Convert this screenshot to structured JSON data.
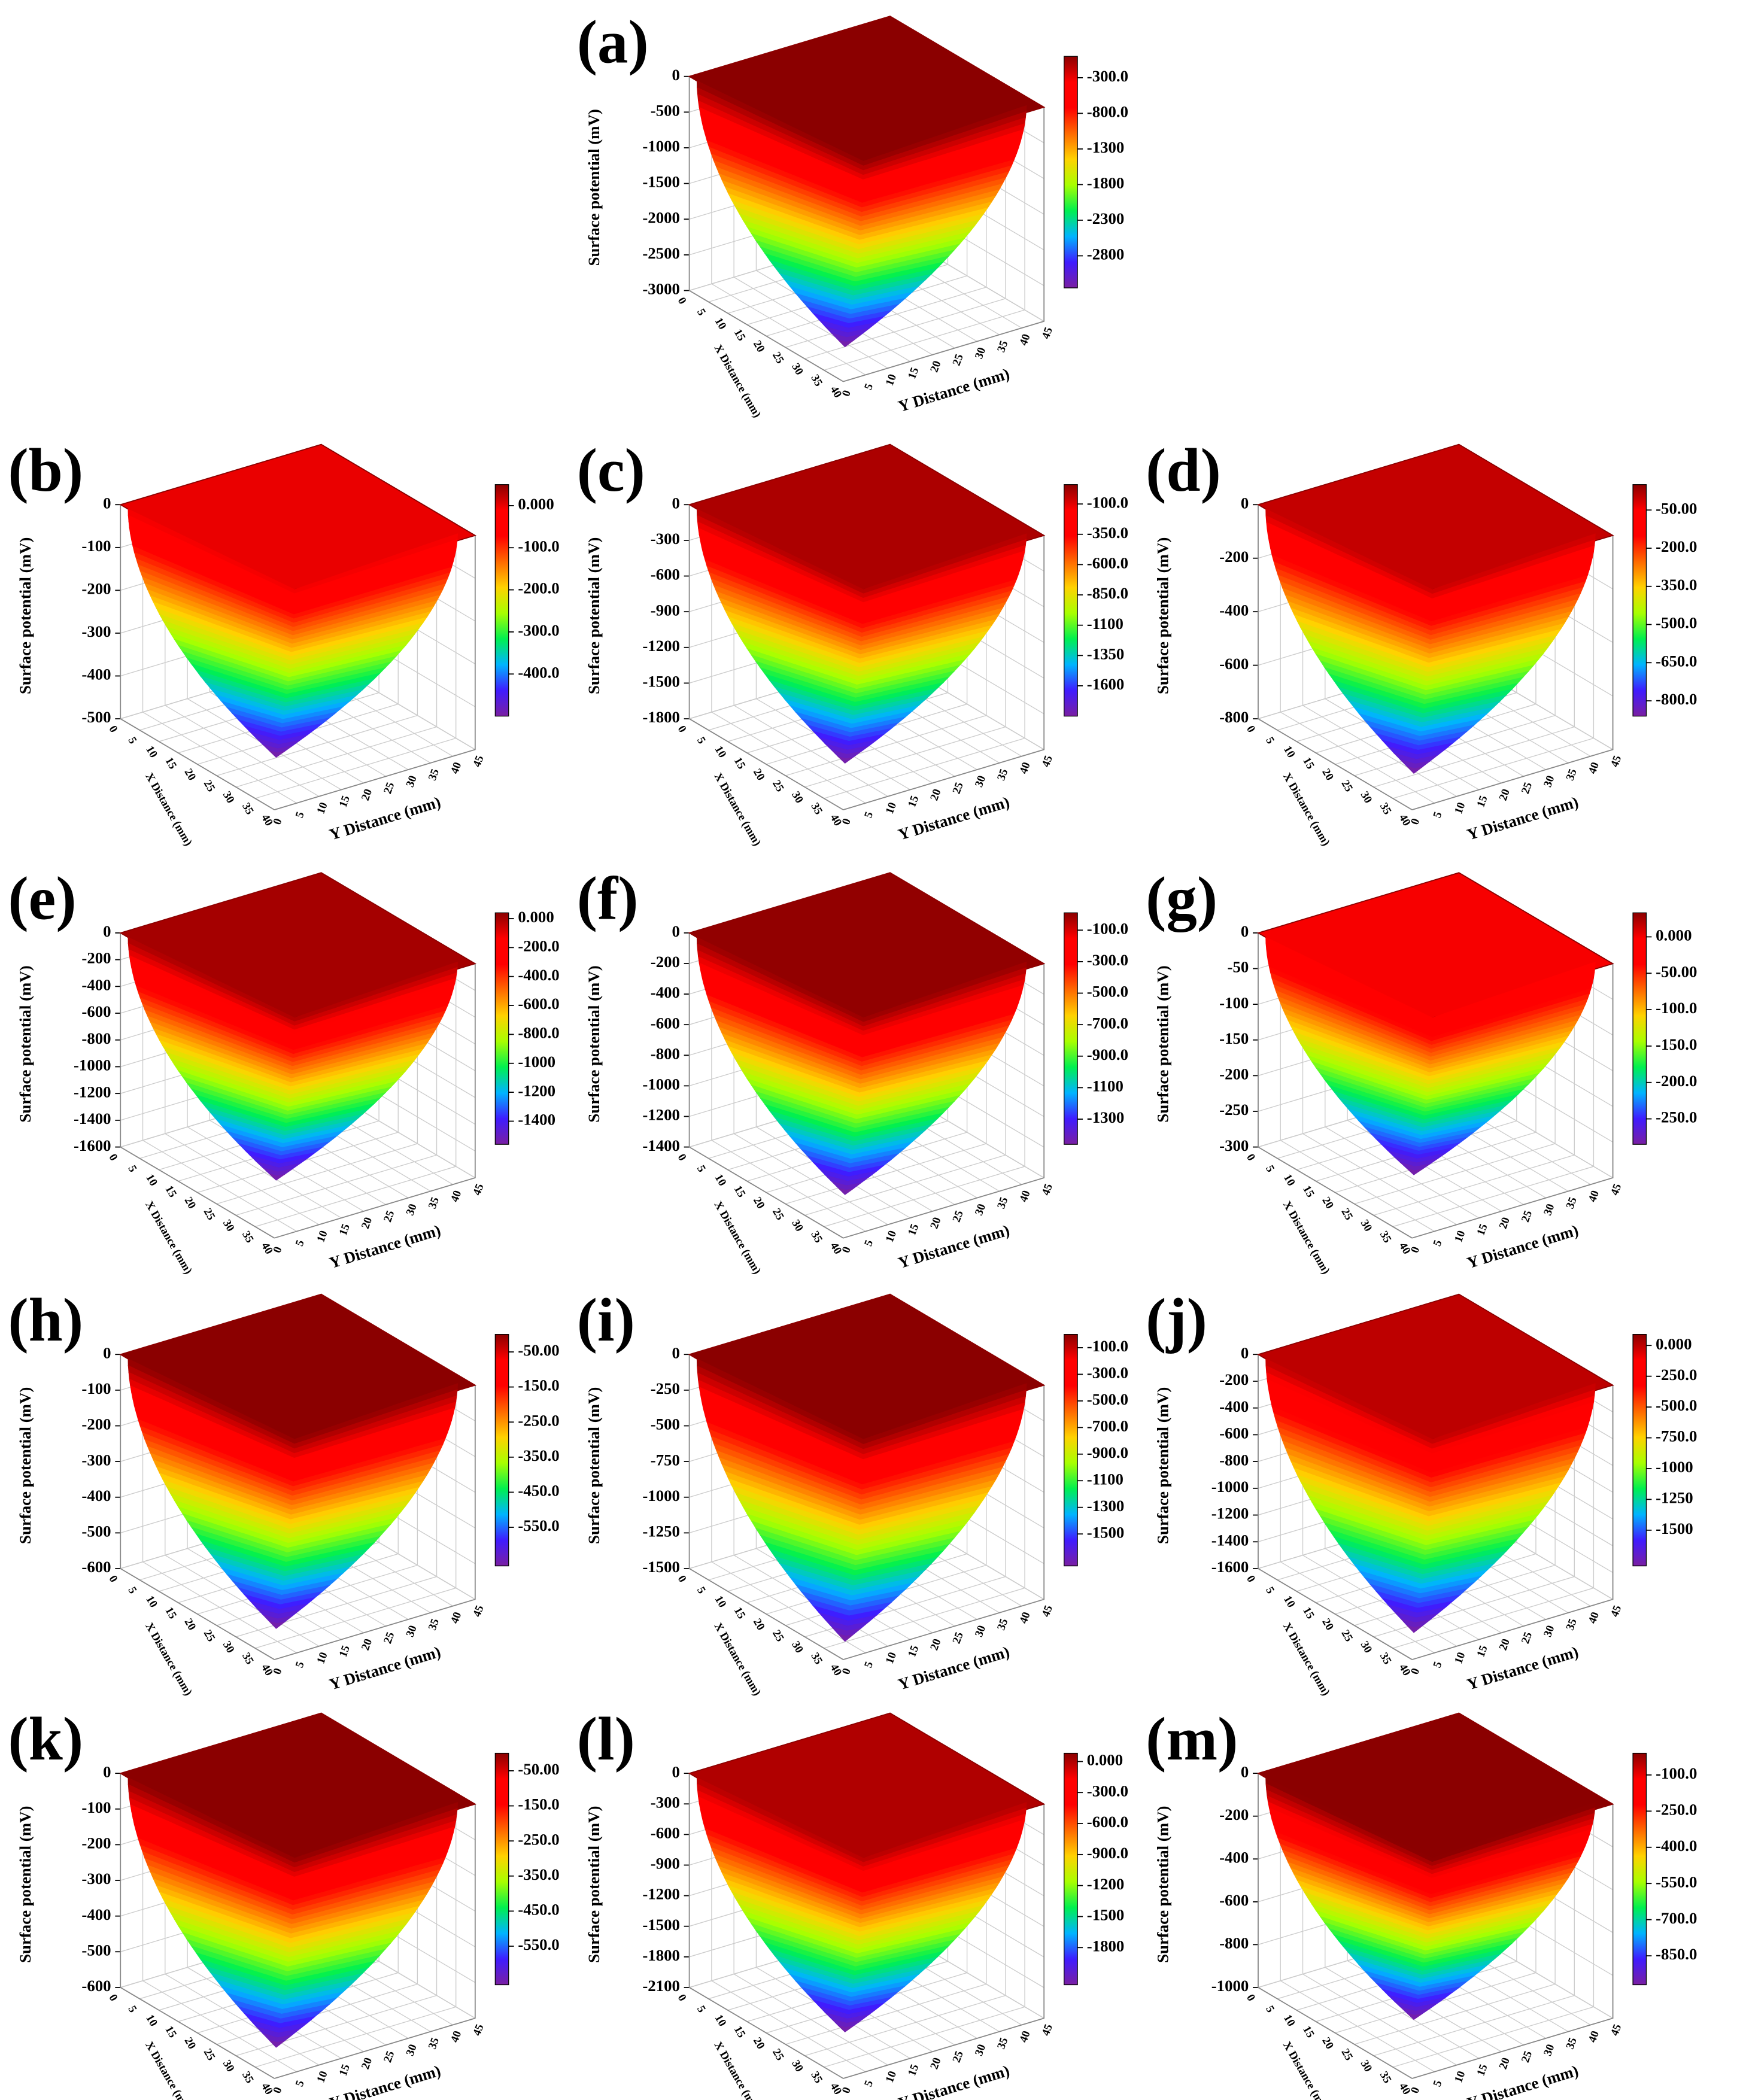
{
  "chart_data": [
    {
      "type": "surface3d",
      "label": "(a)",
      "zlabel": "Surface potential (mV)",
      "xlabel": "X Distance (mm)",
      "ylabel": "Y Distance (mm)",
      "xlim": [
        0,
        40
      ],
      "xticks": [
        0,
        5,
        10,
        15,
        20,
        25,
        30,
        35,
        40
      ],
      "ylim": [
        0,
        45
      ],
      "yticks": [
        0,
        5,
        10,
        15,
        20,
        25,
        30,
        35,
        40,
        45
      ],
      "zlim": [
        -3000,
        0
      ],
      "zticks": [
        0,
        -500,
        -1000,
        -1500,
        -2000,
        -2500,
        -3000
      ],
      "clim": [
        -3250,
        0
      ],
      "cticks": [
        {
          "value": -300,
          "label": "-300.0"
        },
        {
          "value": -800,
          "label": "-800.0"
        },
        -1300,
        -1800,
        -2300,
        -2800
      ],
      "colormap": [
        "#7a1fa2",
        "#3f1cff",
        "#00b4ff",
        "#00f050",
        "#a8ff00",
        "#ffd200",
        "#ff6a00",
        "#ff0000",
        "#ff0000",
        "#8b0000"
      ],
      "grid": true
    },
    {
      "type": "surface3d",
      "label": "(b)",
      "zlabel": "Surface potential (mV)",
      "xlabel": "X Distance (mm)",
      "ylabel": "Y Distance (mm)",
      "xlim": [
        0,
        40
      ],
      "xticks": [
        0,
        5,
        10,
        15,
        20,
        25,
        30,
        35,
        40
      ],
      "ylim": [
        0,
        45
      ],
      "yticks": [
        0,
        5,
        10,
        15,
        20,
        25,
        30,
        35,
        40,
        45
      ],
      "zlim": [
        -500,
        0
      ],
      "zticks": [
        0,
        -100,
        -200,
        -300,
        -400,
        -500
      ],
      "clim": [
        -500,
        50
      ],
      "cticks": [
        {
          "value": 0,
          "label": "0.000"
        },
        {
          "value": -100,
          "label": "-100.0"
        },
        {
          "value": -200,
          "label": "-200.0"
        },
        {
          "value": -300,
          "label": "-300.0"
        },
        {
          "value": -400,
          "label": "-400.0"
        }
      ],
      "colormap": [
        "#7a1fa2",
        "#3f1cff",
        "#00b4ff",
        "#00f050",
        "#a8ff00",
        "#ffd200",
        "#ff6a00",
        "#ff0000",
        "#ff0000",
        "#8b0000"
      ],
      "grid": true
    },
    {
      "type": "surface3d",
      "label": "(c)",
      "zlabel": "Surface potential (mV)",
      "xlabel": "X Distance (mm)",
      "ylabel": "Y Distance (mm)",
      "xlim": [
        0,
        40
      ],
      "xticks": [
        0,
        5,
        10,
        15,
        20,
        25,
        30,
        35,
        40
      ],
      "ylim": [
        0,
        45
      ],
      "yticks": [
        0,
        5,
        10,
        15,
        20,
        25,
        30,
        35,
        40,
        45
      ],
      "zlim": [
        -1800,
        0
      ],
      "zticks": [
        0,
        -300,
        -600,
        -900,
        -1200,
        -1500,
        -1800
      ],
      "clim": [
        -1850,
        60
      ],
      "cticks": [
        {
          "value": -100,
          "label": "-100.0"
        },
        {
          "value": -350,
          "label": "-350.0"
        },
        {
          "value": -600,
          "label": "-600.0"
        },
        {
          "value": -850,
          "label": "-850.0"
        },
        -1100,
        -1350,
        -1600
      ],
      "colormap": [
        "#7a1fa2",
        "#3f1cff",
        "#00b4ff",
        "#00f050",
        "#a8ff00",
        "#ffd200",
        "#ff6a00",
        "#ff0000",
        "#ff0000",
        "#8b0000"
      ],
      "grid": true
    },
    {
      "type": "surface3d",
      "label": "(d)",
      "zlabel": "Surface potential (mV)",
      "xlabel": "X Distance (mm)",
      "ylabel": "Y Distance (mm)",
      "xlim": [
        0,
        40
      ],
      "xticks": [
        0,
        5,
        10,
        15,
        20,
        25,
        30,
        35,
        40
      ],
      "ylim": [
        0,
        45
      ],
      "yticks": [
        0,
        5,
        10,
        15,
        20,
        25,
        30,
        35,
        40,
        45
      ],
      "zlim": [
        -800,
        0
      ],
      "zticks": [
        0,
        -200,
        -400,
        -600,
        -800
      ],
      "clim": [
        -860,
        50
      ],
      "cticks": [
        {
          "value": -50,
          "label": "-50.00"
        },
        {
          "value": -200,
          "label": "-200.0"
        },
        {
          "value": -350,
          "label": "-350.0"
        },
        {
          "value": -500,
          "label": "-500.0"
        },
        {
          "value": -650,
          "label": "-650.0"
        },
        {
          "value": -800,
          "label": "-800.0"
        }
      ],
      "colormap": [
        "#7a1fa2",
        "#3f1cff",
        "#00b4ff",
        "#00f050",
        "#a8ff00",
        "#ffd200",
        "#ff6a00",
        "#ff0000",
        "#ff0000",
        "#8b0000"
      ],
      "grid": true
    },
    {
      "type": "surface3d",
      "label": "(e)",
      "zlabel": "Surface potential (mV)",
      "xlabel": "X Distance (mm)",
      "ylabel": "Y Distance (mm)",
      "xlim": [
        0,
        40
      ],
      "xticks": [
        0,
        5,
        10,
        15,
        20,
        25,
        30,
        35,
        40
      ],
      "ylim": [
        0,
        45
      ],
      "yticks": [
        0,
        5,
        10,
        15,
        20,
        25,
        30,
        35,
        40,
        45
      ],
      "zlim": [
        -1600,
        0
      ],
      "zticks": [
        0,
        -200,
        -400,
        -600,
        -800,
        -1000,
        -1200,
        -1400,
        -1600
      ],
      "clim": [
        -1560,
        40
      ],
      "cticks": [
        {
          "value": 0,
          "label": "0.000"
        },
        {
          "value": -200,
          "label": "-200.0"
        },
        {
          "value": -400,
          "label": "-400.0"
        },
        {
          "value": -600,
          "label": "-600.0"
        },
        {
          "value": -800,
          "label": "-800.0"
        },
        -1000,
        -1200,
        -1400
      ],
      "colormap": [
        "#7a1fa2",
        "#3f1cff",
        "#00b4ff",
        "#00f050",
        "#a8ff00",
        "#ffd200",
        "#ff6a00",
        "#ff0000",
        "#ff0000",
        "#8b0000"
      ],
      "grid": true
    },
    {
      "type": "surface3d",
      "label": "(f)",
      "zlabel": "Surface potential (mV)",
      "xlabel": "X Distance (mm)",
      "ylabel": "Y Distance (mm)",
      "xlim": [
        0,
        40
      ],
      "xticks": [
        0,
        5,
        10,
        15,
        20,
        25,
        30,
        35,
        40
      ],
      "ylim": [
        0,
        45
      ],
      "yticks": [
        0,
        5,
        10,
        15,
        20,
        25,
        30,
        35,
        40,
        45
      ],
      "zlim": [
        -1400,
        0
      ],
      "zticks": [
        0,
        -200,
        -400,
        -600,
        -800,
        -1000,
        -1200,
        -1400
      ],
      "clim": [
        -1460,
        10
      ],
      "cticks": [
        {
          "value": -100,
          "label": "-100.0"
        },
        {
          "value": -300,
          "label": "-300.0"
        },
        {
          "value": -500,
          "label": "-500.0"
        },
        {
          "value": -700,
          "label": "-700.0"
        },
        {
          "value": -900,
          "label": "-900.0"
        },
        -1100,
        -1300
      ],
      "colormap": [
        "#7a1fa2",
        "#3f1cff",
        "#00b4ff",
        "#00f050",
        "#a8ff00",
        "#ffd200",
        "#ff6a00",
        "#ff0000",
        "#ff0000",
        "#8b0000"
      ],
      "grid": true
    },
    {
      "type": "surface3d",
      "label": "(g)",
      "zlabel": "Surface potential (mV)",
      "xlabel": "X Distance (mm)",
      "ylabel": "Y Distance (mm)",
      "xlim": [
        0,
        40
      ],
      "xticks": [
        0,
        5,
        10,
        15,
        20,
        25,
        30,
        35,
        40
      ],
      "ylim": [
        0,
        45
      ],
      "yticks": [
        0,
        5,
        10,
        15,
        20,
        25,
        30,
        35,
        40,
        45
      ],
      "zlim": [
        -300,
        0
      ],
      "zticks": [
        0,
        -50,
        -100,
        -150,
        -200,
        -250,
        -300
      ],
      "clim": [
        -285,
        33
      ],
      "cticks": [
        {
          "value": 0,
          "label": "0.000"
        },
        {
          "value": -50,
          "label": "-50.00"
        },
        {
          "value": -100,
          "label": "-100.0"
        },
        {
          "value": -150,
          "label": "-150.0"
        },
        {
          "value": -200,
          "label": "-200.0"
        },
        {
          "value": -250,
          "label": "-250.0"
        }
      ],
      "colormap": [
        "#7a1fa2",
        "#3f1cff",
        "#00b4ff",
        "#00f050",
        "#a8ff00",
        "#ffd200",
        "#ff6a00",
        "#ff0000",
        "#ff0000",
        "#8b0000"
      ],
      "grid": true
    },
    {
      "type": "surface3d",
      "label": "(h)",
      "zlabel": "Surface potential (mV)",
      "xlabel": "X Distance (mm)",
      "ylabel": "Y Distance (mm)",
      "xlim": [
        0,
        40
      ],
      "xticks": [
        0,
        5,
        10,
        15,
        20,
        25,
        30,
        35,
        40
      ],
      "ylim": [
        0,
        45
      ],
      "yticks": [
        0,
        5,
        10,
        15,
        20,
        25,
        30,
        35,
        40,
        45
      ],
      "zlim": [
        -600,
        0
      ],
      "zticks": [
        0,
        -100,
        -200,
        -300,
        -400,
        -500,
        -600
      ],
      "clim": [
        -660,
        0
      ],
      "cticks": [
        {
          "value": -50,
          "label": "-50.00"
        },
        {
          "value": -150,
          "label": "-150.0"
        },
        {
          "value": -250,
          "label": "-250.0"
        },
        {
          "value": -350,
          "label": "-350.0"
        },
        {
          "value": -450,
          "label": "-450.0"
        },
        {
          "value": -550,
          "label": "-550.0"
        }
      ],
      "colormap": [
        "#7a1fa2",
        "#3f1cff",
        "#00b4ff",
        "#00f050",
        "#a8ff00",
        "#ffd200",
        "#ff6a00",
        "#ff0000",
        "#ff0000",
        "#8b0000"
      ],
      "grid": true
    },
    {
      "type": "surface3d",
      "label": "(i)",
      "zlabel": "Surface potential (mV)",
      "xlabel": "X Distance (mm)",
      "ylabel": "Y Distance (mm)",
      "xlim": [
        0,
        40
      ],
      "xticks": [
        0,
        5,
        10,
        15,
        20,
        25,
        30,
        35,
        40
      ],
      "ylim": [
        0,
        45
      ],
      "yticks": [
        0,
        5,
        10,
        15,
        20,
        25,
        30,
        35,
        40,
        45
      ],
      "zlim": [
        -1500,
        0
      ],
      "zticks": [
        0,
        -250,
        -500,
        -750,
        -1000,
        -1250,
        -1500
      ],
      "clim": [
        -1740,
        0
      ],
      "cticks": [
        {
          "value": -100,
          "label": "-100.0"
        },
        {
          "value": -300,
          "label": "-300.0"
        },
        {
          "value": -500,
          "label": "-500.0"
        },
        {
          "value": -700,
          "label": "-700.0"
        },
        {
          "value": -900,
          "label": "-900.0"
        },
        -1100,
        -1300,
        -1500
      ],
      "colormap": [
        "#7a1fa2",
        "#3f1cff",
        "#00b4ff",
        "#00f050",
        "#a8ff00",
        "#ffd200",
        "#ff6a00",
        "#ff0000",
        "#ff0000",
        "#8b0000"
      ],
      "grid": true
    },
    {
      "type": "surface3d",
      "label": "(j)",
      "zlabel": "Surface potential (mV)",
      "xlabel": "X Distance (mm)",
      "ylabel": "Y Distance (mm)",
      "xlim": [
        0,
        40
      ],
      "xticks": [
        0,
        5,
        10,
        15,
        20,
        25,
        30,
        35,
        40
      ],
      "ylim": [
        0,
        45
      ],
      "yticks": [
        0,
        5,
        10,
        15,
        20,
        25,
        30,
        35,
        40,
        45
      ],
      "zlim": [
        -1600,
        0
      ],
      "zticks": [
        0,
        -200,
        -400,
        -600,
        -800,
        -1000,
        -1200,
        -1400,
        -1600
      ],
      "clim": [
        -1790,
        90
      ],
      "cticks": [
        {
          "value": 0,
          "label": "0.000"
        },
        {
          "value": -250,
          "label": "-250.0"
        },
        {
          "value": -500,
          "label": "-500.0"
        },
        {
          "value": -750,
          "label": "-750.0"
        },
        -1000,
        -1250,
        -1500
      ],
      "colormap": [
        "#7a1fa2",
        "#3f1cff",
        "#00b4ff",
        "#00f050",
        "#a8ff00",
        "#ffd200",
        "#ff6a00",
        "#ff0000",
        "#ff0000",
        "#8b0000"
      ],
      "grid": true
    },
    {
      "type": "surface3d",
      "label": "(k)",
      "zlabel": "Surface potential (mV)",
      "xlabel": "X Distance (mm)",
      "ylabel": "Y Distance (mm)",
      "xlim": [
        0,
        40
      ],
      "xticks": [
        0,
        5,
        10,
        15,
        20,
        25,
        30,
        35,
        40
      ],
      "ylim": [
        0,
        45
      ],
      "yticks": [
        0,
        5,
        10,
        15,
        20,
        25,
        30,
        35,
        40,
        45
      ],
      "zlim": [
        -600,
        0
      ],
      "zticks": [
        0,
        -100,
        -200,
        -300,
        -400,
        -500,
        -600
      ],
      "clim": [
        -660,
        0
      ],
      "cticks": [
        {
          "value": -50,
          "label": "-50.00"
        },
        {
          "value": -150,
          "label": "-150.0"
        },
        {
          "value": -250,
          "label": "-250.0"
        },
        {
          "value": -350,
          "label": "-350.0"
        },
        {
          "value": -450,
          "label": "-450.0"
        },
        {
          "value": -550,
          "label": "-550.0"
        }
      ],
      "colormap": [
        "#7a1fa2",
        "#3f1cff",
        "#00b4ff",
        "#00f050",
        "#a8ff00",
        "#ffd200",
        "#ff6a00",
        "#ff0000",
        "#ff0000",
        "#8b0000"
      ],
      "grid": true
    },
    {
      "type": "surface3d",
      "label": "(l)",
      "zlabel": "Surface potential (mV)",
      "xlabel": "X Distance (mm)",
      "ylabel": "Y Distance (mm)",
      "xlim": [
        0,
        40
      ],
      "xticks": [
        0,
        5,
        10,
        15,
        20,
        25,
        30,
        35,
        40
      ],
      "ylim": [
        0,
        45
      ],
      "yticks": [
        0,
        5,
        10,
        15,
        20,
        25,
        30,
        35,
        40,
        45
      ],
      "zlim": [
        -2100,
        0
      ],
      "zticks": [
        0,
        -300,
        -600,
        -900,
        -1200,
        -1500,
        -1800,
        -2100
      ],
      "clim": [
        -2160,
        80
      ],
      "cticks": [
        {
          "value": 0,
          "label": "0.000"
        },
        {
          "value": -300,
          "label": "-300.0"
        },
        {
          "value": -600,
          "label": "-600.0"
        },
        {
          "value": -900,
          "label": "-900.0"
        },
        -1200,
        -1500,
        -1800
      ],
      "colormap": [
        "#7a1fa2",
        "#3f1cff",
        "#00b4ff",
        "#00f050",
        "#a8ff00",
        "#ffd200",
        "#ff6a00",
        "#ff0000",
        "#ff0000",
        "#8b0000"
      ],
      "grid": true
    },
    {
      "type": "surface3d",
      "label": "(m)",
      "zlabel": "Surface potential (mV)",
      "xlabel": "X Distance (mm)",
      "ylabel": "Y Distance (mm)",
      "xlim": [
        0,
        40
      ],
      "xticks": [
        0,
        5,
        10,
        15,
        20,
        25,
        30,
        35,
        40
      ],
      "ylim": [
        0,
        45
      ],
      "yticks": [
        0,
        5,
        10,
        15,
        20,
        25,
        30,
        35,
        40,
        45
      ],
      "zlim": [
        -1000,
        0
      ],
      "zticks": [
        0,
        -200,
        -400,
        -600,
        -800,
        -1000
      ],
      "clim": [
        -970,
        -10
      ],
      "cticks": [
        {
          "value": -100,
          "label": "-100.0"
        },
        {
          "value": -250,
          "label": "-250.0"
        },
        {
          "value": -400,
          "label": "-400.0"
        },
        {
          "value": -550,
          "label": "-550.0"
        },
        {
          "value": -700,
          "label": "-700.0"
        },
        {
          "value": -850,
          "label": "-850.0"
        }
      ],
      "colormap": [
        "#7a1fa2",
        "#3f1cff",
        "#00b4ff",
        "#00f050",
        "#a8ff00",
        "#ffd200",
        "#ff6a00",
        "#ff0000",
        "#ff0000",
        "#8b0000"
      ],
      "grid": true
    }
  ]
}
